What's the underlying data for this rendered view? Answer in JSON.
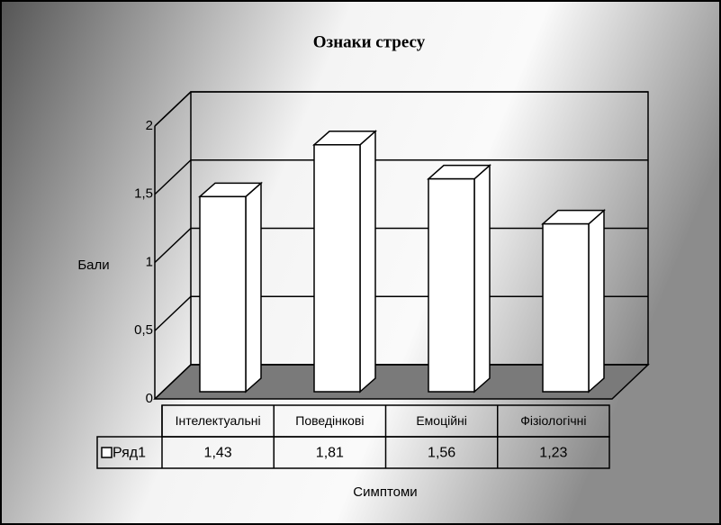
{
  "chart_data": {
    "type": "bar3d",
    "title": "Ознаки стресу",
    "ylabel": "Бали",
    "xlabel": "Симптоми",
    "categories": [
      "Інтелектуальні",
      "Поведінкові",
      "Емоційні",
      "Фізіологічні"
    ],
    "series": [
      {
        "name": "Ряд1",
        "color": "#ffffff",
        "values": [
          1.43,
          1.81,
          1.56,
          1.23
        ],
        "value_labels": [
          "1,43",
          "1,81",
          "1,56",
          "1,23"
        ]
      }
    ],
    "ylim": [
      0,
      2
    ],
    "yticks": [
      0,
      {
        "value": 0.5,
        "label": "0,5"
      },
      1,
      {
        "value": 1.5,
        "label": "1,5"
      },
      2
    ],
    "grid": true
  }
}
